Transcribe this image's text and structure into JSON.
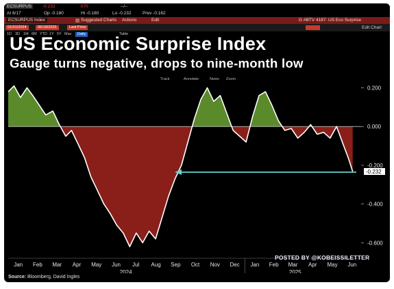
{
  "terminal": {
    "ticker": "ECSURPUS",
    "last_price": "-0.232",
    "change": ".070",
    "change_pct": "--/--",
    "at_label": "At 6/17",
    "op_label": "Op -0.180",
    "hi_label": "Hi -0.180",
    "lo_label": "Lo -0.232",
    "prev_label": "Prev -0.162",
    "security_field": "ECSURPUS Index",
    "suggested_charts": "Suggested Charts",
    "actions_menu": "Actions",
    "edit_menu": "Edit",
    "chart_tab_label": "G #BTV 4187: US Eco Surprise",
    "start_date": "01/01/2024",
    "end_date": "06/18/2025",
    "frequency": "Last Price",
    "edit_chart": "Edit Chart",
    "periods": [
      "1D",
      "3D",
      "1M",
      "6M",
      "YTD",
      "1Y",
      "5Y",
      "Max"
    ],
    "interval": "Daily",
    "table_label": "Table",
    "chart_tools": [
      "Track",
      "Annotate",
      "News",
      "Zoom"
    ]
  },
  "headline": {
    "title": "US Economic Surprise Index",
    "subtitle": "Gauge turns negative, drops to nine-month low"
  },
  "credit": "POSTED BY @KOBEISSILETTER",
  "source": {
    "label": "Source:",
    "text": "Bloomberg, David Ingles"
  },
  "colors": {
    "positive_fill": "#5a8a2a",
    "negative_fill": "#8a1f1a",
    "line": "#ffffff",
    "arrow": "#66d4d4",
    "current_label_bg": "#ffffff"
  },
  "chart_data": {
    "type": "area",
    "title": "US Economic Surprise Index",
    "subtitle": "Gauge turns negative, drops to nine-month low",
    "x_axis": {
      "months": [
        "Jan",
        "Feb",
        "Mar",
        "Apr",
        "May",
        "Jun",
        "Jul",
        "Aug",
        "Sep",
        "Oct",
        "Nov",
        "Dec",
        "Jan",
        "Feb",
        "Mar",
        "Apr",
        "May",
        "Jun"
      ],
      "years": [
        "2024",
        "2025"
      ]
    },
    "y_axis": {
      "ticks": [
        "0.200",
        "0.000",
        "-0.200",
        "-0.400",
        "-0.600"
      ],
      "range": [
        -0.68,
        0.23
      ],
      "side": "right"
    },
    "current_value": "-0.232",
    "annotation": "arrow pointing to current value -0.232",
    "grid": false,
    "series": [
      {
        "points": [
          {
            "x": "2024-01-01",
            "y": 0.18
          },
          {
            "x": "2024-01-10",
            "y": 0.21
          },
          {
            "x": "2024-01-20",
            "y": 0.15
          },
          {
            "x": "2024-01-30",
            "y": 0.2
          },
          {
            "x": "2024-02-08",
            "y": 0.16
          },
          {
            "x": "2024-02-18",
            "y": 0.11
          },
          {
            "x": "2024-02-28",
            "y": 0.06
          },
          {
            "x": "2024-03-10",
            "y": 0.08
          },
          {
            "x": "2024-03-20",
            "y": 0.01
          },
          {
            "x": "2024-03-30",
            "y": -0.05
          },
          {
            "x": "2024-04-08",
            "y": -0.02
          },
          {
            "x": "2024-04-18",
            "y": -0.09
          },
          {
            "x": "2024-04-28",
            "y": -0.16
          },
          {
            "x": "2024-05-08",
            "y": -0.26
          },
          {
            "x": "2024-05-18",
            "y": -0.33
          },
          {
            "x": "2024-05-28",
            "y": -0.4
          },
          {
            "x": "2024-06-07",
            "y": -0.45
          },
          {
            "x": "2024-06-17",
            "y": -0.51
          },
          {
            "x": "2024-06-27",
            "y": -0.55
          },
          {
            "x": "2024-07-07",
            "y": -0.62
          },
          {
            "x": "2024-07-17",
            "y": -0.55
          },
          {
            "x": "2024-07-27",
            "y": -0.6
          },
          {
            "x": "2024-08-06",
            "y": -0.54
          },
          {
            "x": "2024-08-16",
            "y": -0.58
          },
          {
            "x": "2024-08-26",
            "y": -0.47
          },
          {
            "x": "2024-09-05",
            "y": -0.36
          },
          {
            "x": "2024-09-15",
            "y": -0.27
          },
          {
            "x": "2024-09-25",
            "y": -0.2
          },
          {
            "x": "2024-10-05",
            "y": -0.08
          },
          {
            "x": "2024-10-15",
            "y": 0.04
          },
          {
            "x": "2024-10-25",
            "y": 0.14
          },
          {
            "x": "2024-11-04",
            "y": 0.2
          },
          {
            "x": "2024-11-14",
            "y": 0.13
          },
          {
            "x": "2024-11-24",
            "y": 0.16
          },
          {
            "x": "2024-12-04",
            "y": 0.07
          },
          {
            "x": "2024-12-14",
            "y": -0.02
          },
          {
            "x": "2024-12-24",
            "y": -0.05
          },
          {
            "x": "2025-01-03",
            "y": -0.08
          },
          {
            "x": "2025-01-13",
            "y": 0.05
          },
          {
            "x": "2025-01-23",
            "y": 0.16
          },
          {
            "x": "2025-02-02",
            "y": 0.18
          },
          {
            "x": "2025-02-12",
            "y": 0.11
          },
          {
            "x": "2025-02-22",
            "y": 0.03
          },
          {
            "x": "2025-03-04",
            "y": -0.02
          },
          {
            "x": "2025-03-14",
            "y": -0.01
          },
          {
            "x": "2025-03-24",
            "y": -0.06
          },
          {
            "x": "2025-04-03",
            "y": -0.03
          },
          {
            "x": "2025-04-13",
            "y": 0.01
          },
          {
            "x": "2025-04-23",
            "y": -0.04
          },
          {
            "x": "2025-05-03",
            "y": -0.03
          },
          {
            "x": "2025-05-13",
            "y": -0.06
          },
          {
            "x": "2025-05-23",
            "y": 0.0
          },
          {
            "x": "2025-06-02",
            "y": -0.09
          },
          {
            "x": "2025-06-10",
            "y": -0.16
          },
          {
            "x": "2025-06-17",
            "y": -0.232
          }
        ]
      }
    ]
  }
}
